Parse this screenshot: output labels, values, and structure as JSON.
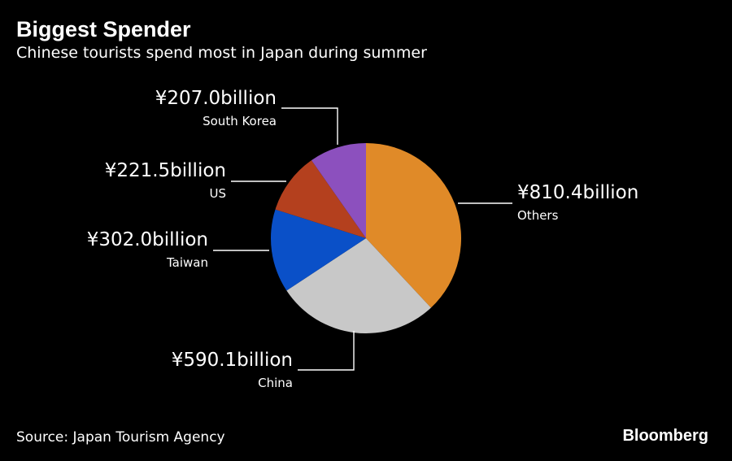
{
  "header": {
    "title": "Biggest Spender",
    "subtitle": "Chinese tourists spend most in Japan during summer"
  },
  "footer": {
    "source": "Source: Japan Tourism Agency",
    "brand": "Bloomberg"
  },
  "chart_data": {
    "type": "pie",
    "title": "Biggest Spender",
    "subtitle": "Chinese tourists spend most in Japan during summer",
    "unit": "billion yen",
    "start_angle_deg": 0,
    "direction": "clockwise",
    "legend": "none (direct labels)",
    "slices": [
      {
        "name": "Others",
        "value": 810.4,
        "value_label": "¥810.4billion",
        "color": "#e08a28"
      },
      {
        "name": "China",
        "value": 590.1,
        "value_label": "¥590.1billion",
        "color": "#c8c8c8"
      },
      {
        "name": "Taiwan",
        "value": 302.0,
        "value_label": "¥302.0billion",
        "color": "#0a50c8"
      },
      {
        "name": "US",
        "value": 221.5,
        "value_label": "¥221.5billion",
        "color": "#b4401e"
      },
      {
        "name": "South Korea",
        "value": 207.0,
        "value_label": "¥207.0billion",
        "color": "#8c50be"
      }
    ]
  }
}
